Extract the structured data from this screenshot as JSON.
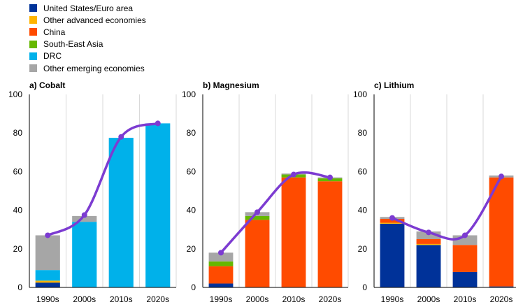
{
  "legend": [
    {
      "label": "United States/Euro area",
      "color": "#003299"
    },
    {
      "label": "Other advanced economies",
      "color": "#FFB400"
    },
    {
      "label": "China",
      "color": "#FF4B00"
    },
    {
      "label": "South-East Asia",
      "color": "#65B800"
    },
    {
      "label": "DRC",
      "color": "#00B1EA"
    },
    {
      "label": "Other emerging economies",
      "color": "#A6A6A6"
    }
  ],
  "line_color": "#7C3BD1",
  "chart_data": [
    {
      "type": "bar",
      "stacked": true,
      "title": "a) Cobalt",
      "categories": [
        "1990s",
        "2000s",
        "2010s",
        "2020s"
      ],
      "ylim": [
        0,
        100
      ],
      "yticks": [
        "0",
        "20",
        "40",
        "60",
        "80",
        "100"
      ],
      "grid": true,
      "series": [
        {
          "name": "United States/Euro area",
          "values": [
            2.5,
            0,
            0,
            0
          ]
        },
        {
          "name": "Other advanced economies",
          "values": [
            1,
            0,
            0,
            0
          ]
        },
        {
          "name": "China",
          "values": [
            0,
            0,
            0,
            0
          ]
        },
        {
          "name": "South-East Asia",
          "values": [
            0,
            0,
            0,
            0
          ]
        },
        {
          "name": "DRC",
          "values": [
            5.5,
            34,
            77.5,
            85
          ]
        },
        {
          "name": "Other emerging economies",
          "values": [
            18,
            3,
            0,
            0
          ]
        }
      ],
      "line": [
        27,
        37.5,
        78,
        85
      ]
    },
    {
      "type": "bar",
      "stacked": true,
      "title": "b) Magnesium",
      "categories": [
        "1990s",
        "2000s",
        "2010s",
        "2020s"
      ],
      "ylim": [
        0,
        100
      ],
      "yticks": [
        "0",
        "20",
        "40",
        "60",
        "80",
        "100"
      ],
      "grid": true,
      "series": [
        {
          "name": "United States/Euro area",
          "values": [
            2,
            0,
            0,
            0
          ]
        },
        {
          "name": "Other advanced economies",
          "values": [
            0,
            0,
            0,
            0
          ]
        },
        {
          "name": "China",
          "values": [
            9,
            35,
            57,
            55
          ]
        },
        {
          "name": "South-East Asia",
          "values": [
            2.5,
            2,
            1.5,
            1.5
          ]
        },
        {
          "name": "DRC",
          "values": [
            0,
            0,
            0,
            0
          ]
        },
        {
          "name": "Other emerging economies",
          "values": [
            4.5,
            2,
            0.5,
            0.5
          ]
        }
      ],
      "line": [
        18,
        39,
        58.5,
        57
      ]
    },
    {
      "type": "bar",
      "stacked": true,
      "title": "c) Lithium",
      "categories": [
        "1990s",
        "2000s",
        "2010s",
        "2020s"
      ],
      "ylim": [
        0,
        100
      ],
      "yticks": [
        "0",
        "20",
        "40",
        "60",
        "80",
        "100"
      ],
      "grid": true,
      "series": [
        {
          "name": "United States/Euro area",
          "values": [
            33,
            22,
            8,
            0.5
          ]
        },
        {
          "name": "Other advanced economies",
          "values": [
            0.5,
            0.5,
            0,
            0
          ]
        },
        {
          "name": "China",
          "values": [
            2,
            2.5,
            14,
            56.5
          ]
        },
        {
          "name": "South-East Asia",
          "values": [
            0,
            0,
            0,
            0
          ]
        },
        {
          "name": "DRC",
          "values": [
            0,
            0,
            0,
            0
          ]
        },
        {
          "name": "Other emerging economies",
          "values": [
            1,
            4,
            5,
            1
          ]
        }
      ],
      "line": [
        36,
        28.5,
        27,
        57.5
      ]
    }
  ]
}
